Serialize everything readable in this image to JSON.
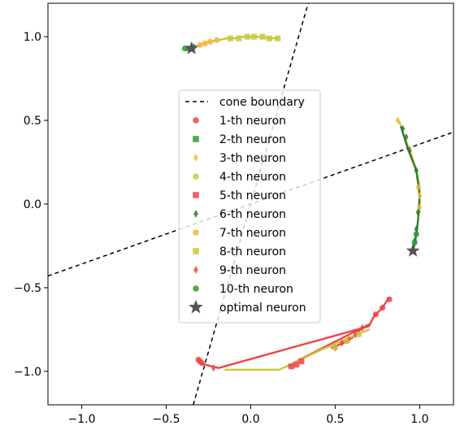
{
  "chart_data": {
    "type": "scatter",
    "xlim": [
      -1.2,
      1.2
    ],
    "ylim": [
      -1.2,
      1.2
    ],
    "xticks": [
      -1.0,
      -0.5,
      0.0,
      0.5,
      1.0
    ],
    "yticks": [
      1.0,
      0.5,
      0.0,
      -0.5,
      -1.0
    ],
    "xtick_labels": [
      "−1.0",
      "−0.5",
      "0.0",
      "0.5",
      "1.0"
    ],
    "ytick_labels": [
      "1.0",
      "0.5",
      "0.0",
      "−0.5",
      "−1.0"
    ],
    "grid": false,
    "legend_location": "center",
    "legend": [
      {
        "label": "cone boundary",
        "marker": "dashed-line",
        "color": "#000000"
      },
      {
        "label": "1-th neuron",
        "marker": "circle",
        "color": "#ef4444"
      },
      {
        "label": "2-th neuron",
        "marker": "square",
        "color": "#2e9a2e"
      },
      {
        "label": "3-th neuron",
        "marker": "thin-diamond",
        "color": "#f2b63c"
      },
      {
        "label": "4-th neuron",
        "marker": "circle",
        "color": "#c8c83a"
      },
      {
        "label": "5-th neuron",
        "marker": "square",
        "color": "#ef4444"
      },
      {
        "label": "6-th neuron",
        "marker": "thin-diamond",
        "color": "#2e7d2e"
      },
      {
        "label": "7-th neuron",
        "marker": "circle",
        "color": "#f2b63c"
      },
      {
        "label": "8-th neuron",
        "marker": "square",
        "color": "#c8c83a"
      },
      {
        "label": "9-th neuron",
        "marker": "thin-diamond",
        "color": "#ef4444"
      },
      {
        "label": "10-th neuron",
        "marker": "circle",
        "color": "#2e9a2e"
      },
      {
        "label": "optimal neuron",
        "marker": "star",
        "color": "#555555"
      }
    ],
    "cone_boundaries": [
      {
        "x": [
          -0.34,
          0.34
        ],
        "y": [
          -1.2,
          1.2
        ]
      },
      {
        "x": [
          -1.2,
          1.2
        ],
        "y": [
          -0.43,
          0.43
        ]
      }
    ],
    "optimal_neurons": [
      {
        "x": -0.35,
        "y": 0.93
      },
      {
        "x": 0.96,
        "y": -0.28
      }
    ],
    "trajectories": [
      {
        "color": "#ef4444",
        "x": [
          0.82,
          0.77,
          0.73,
          0.7,
          -0.19,
          -0.27,
          -0.3,
          -0.31
        ],
        "y": [
          -0.56,
          -0.63,
          -0.67,
          -0.73,
          -0.98,
          -0.96,
          -0.95,
          -0.94
        ]
      },
      {
        "color": "#ef4444",
        "x": [
          0.66,
          0.6,
          0.55,
          0.48
        ],
        "y": [
          -0.74,
          -0.8,
          -0.83,
          -0.86
        ]
      },
      {
        "color": "#ef4444",
        "x": [
          0.7,
          0.29,
          0.22
        ],
        "y": [
          -0.72,
          -0.93,
          -0.97
        ]
      },
      {
        "color": "#c8c83a",
        "x": [
          0.7,
          0.42,
          0.17,
          -0.15
        ],
        "y": [
          -0.75,
          -0.87,
          -0.99,
          -0.99
        ]
      },
      {
        "color": "#c8c83a",
        "x": [
          0.16,
          0.11,
          0.05,
          0.0,
          -0.04,
          -0.09,
          -0.14,
          -0.19
        ],
        "y": [
          0.99,
          0.99,
          1.0,
          1.0,
          1.0,
          0.99,
          0.99,
          0.98
        ]
      },
      {
        "color": "#f2b63c",
        "x": [
          -0.19,
          -0.24,
          -0.27,
          -0.3,
          -0.33
        ],
        "y": [
          0.98,
          0.97,
          0.96,
          0.95,
          0.94
        ]
      },
      {
        "color": "#2e9a2e",
        "x": [
          -0.33,
          -0.36,
          -0.38
        ],
        "y": [
          0.94,
          0.93,
          0.92
        ]
      },
      {
        "color": "#f2b63c",
        "x": [
          0.88,
          0.91,
          0.95,
          0.98,
          1.0,
          1.0
        ],
        "y": [
          0.49,
          0.4,
          0.3,
          0.2,
          0.1,
          -0.05
        ]
      },
      {
        "color": "#2e7d2e",
        "x": [
          0.89,
          0.93,
          0.98,
          1.0,
          0.99,
          0.98,
          0.97,
          0.96
        ],
        "y": [
          0.46,
          0.33,
          0.2,
          0.05,
          -0.1,
          -0.18,
          -0.24,
          -0.28
        ]
      }
    ],
    "markers": [
      {
        "kind": "circle",
        "color": "#ef4444",
        "x": [
          0.82,
          0.78,
          0.74,
          -0.29,
          -0.3,
          -0.31
        ],
        "y": [
          -0.57,
          -0.62,
          -0.66,
          -0.95,
          -0.94,
          -0.93
        ]
      },
      {
        "kind": "square",
        "color": "#ef4444",
        "x": [
          0.3,
          0.27,
          0.24
        ],
        "y": [
          -0.94,
          -0.96,
          -0.97
        ]
      },
      {
        "kind": "diamond",
        "color": "#ef4444",
        "x": [
          0.66,
          0.62,
          0.58,
          0.54,
          0.5,
          -0.22
        ],
        "y": [
          -0.74,
          -0.78,
          -0.81,
          -0.83,
          -0.86,
          -0.98
        ]
      },
      {
        "kind": "circle",
        "color": "#c8c83a",
        "x": [
          0.64,
          0.57,
          0.5
        ],
        "y": [
          -0.78,
          -0.82,
          -0.86
        ]
      },
      {
        "kind": "square",
        "color": "#c8c83a",
        "x": [
          0.16,
          0.11,
          0.07,
          0.02,
          -0.02,
          -0.07,
          -0.12
        ],
        "y": [
          0.99,
          0.99,
          1.0,
          1.0,
          1.0,
          0.99,
          0.99
        ]
      },
      {
        "kind": "circle",
        "color": "#f2b63c",
        "x": [
          -0.2,
          -0.24,
          -0.27,
          -0.3
        ],
        "y": [
          0.98,
          0.97,
          0.96,
          0.95
        ]
      },
      {
        "kind": "circle",
        "color": "#2e9a2e",
        "x": [
          -0.34,
          -0.37,
          -0.39
        ],
        "y": [
          0.94,
          0.93,
          0.93
        ]
      },
      {
        "kind": "diamond",
        "color": "#f2b63c",
        "x": [
          0.87,
          0.99,
          1.0,
          1.0
        ],
        "y": [
          0.5,
          0.1,
          0.05,
          -0.02
        ]
      },
      {
        "kind": "diamond",
        "color": "#2e7d2e",
        "x": [
          0.9,
          0.92,
          0.94,
          0.98,
          0.99,
          0.98,
          0.97
        ],
        "y": [
          0.45,
          0.4,
          0.32,
          0.2,
          -0.05,
          -0.15,
          -0.22
        ]
      },
      {
        "kind": "circle",
        "color": "#2e9a2e",
        "x": [
          0.98,
          0.97
        ],
        "y": [
          -0.18,
          -0.23
        ]
      }
    ]
  }
}
